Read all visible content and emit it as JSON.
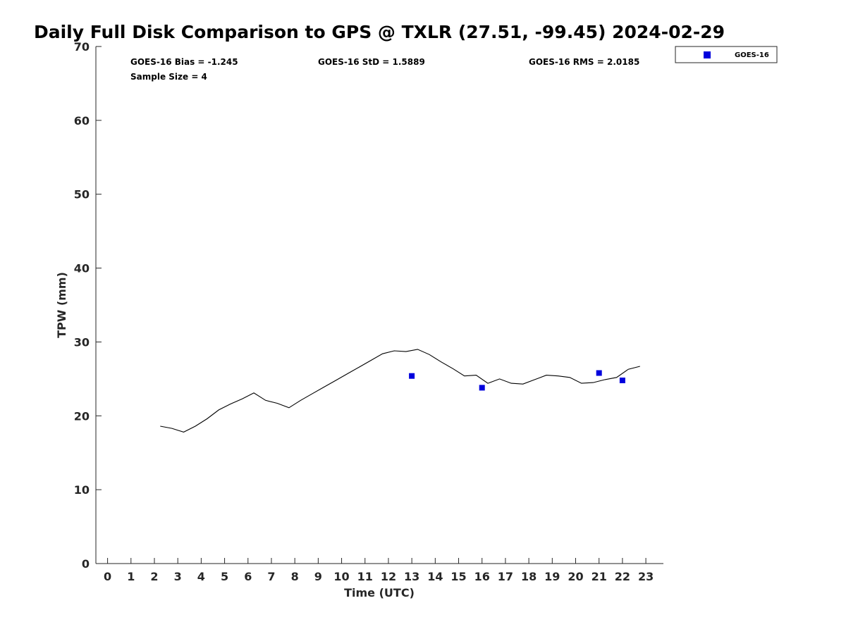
{
  "chart_data": {
    "type": "line",
    "title": "Daily Full Disk Comparison to GPS @ TXLR (27.51, -99.45) 2024-02-29",
    "xlabel": "Time (UTC)",
    "ylabel": "TPW (mm)",
    "xlim": [
      -0.5,
      23.75
    ],
    "ylim": [
      0,
      70
    ],
    "xticks": [
      0,
      1,
      2,
      3,
      4,
      5,
      6,
      7,
      8,
      9,
      10,
      11,
      12,
      13,
      14,
      15,
      16,
      17,
      18,
      19,
      20,
      21,
      22,
      23
    ],
    "yticks": [
      0,
      10,
      20,
      30,
      40,
      50,
      60,
      70
    ],
    "grid": false,
    "legend_position": "top-right, outside plot",
    "stats": {
      "bias": "GOES-16 Bias = -1.245",
      "std": "GOES-16 StD = 1.5889",
      "rms": "GOES-16 RMS = 2.0185",
      "sample_size": "Sample Size = 4"
    },
    "series": [
      {
        "type": "line",
        "color": "#000000",
        "x": [
          2.25,
          2.75,
          3.25,
          3.75,
          4.25,
          4.75,
          5.25,
          5.75,
          6.25,
          6.75,
          7.25,
          7.75,
          8.25,
          8.75,
          9.25,
          9.75,
          10.25,
          10.75,
          11.25,
          11.75,
          12.25,
          12.75,
          13.25,
          13.75,
          14.25,
          14.75,
          15.25,
          15.75,
          16.25,
          16.75,
          17.25,
          17.75,
          18.25,
          18.75,
          19.25,
          19.75,
          20.25,
          20.75,
          21.25,
          21.75,
          22.25,
          22.75
        ],
        "y": [
          18.6,
          18.3,
          17.8,
          18.6,
          19.6,
          20.8,
          21.6,
          22.3,
          23.1,
          22.1,
          21.7,
          21.1,
          22.1,
          23.0,
          23.9,
          24.8,
          25.7,
          26.6,
          27.5,
          28.4,
          28.8,
          28.7,
          29.0,
          28.3,
          27.3,
          26.4,
          25.4,
          25.5,
          24.4,
          25.0,
          24.4,
          24.3,
          24.9,
          25.5,
          25.4,
          25.2,
          24.4,
          24.5,
          24.9,
          25.2,
          26.3,
          26.7
        ]
      },
      {
        "name": "GOES-16",
        "type": "scatter",
        "color": "#0000dd",
        "x": [
          13,
          16,
          21,
          22
        ],
        "y": [
          25.4,
          23.8,
          25.8,
          24.8
        ]
      }
    ]
  }
}
